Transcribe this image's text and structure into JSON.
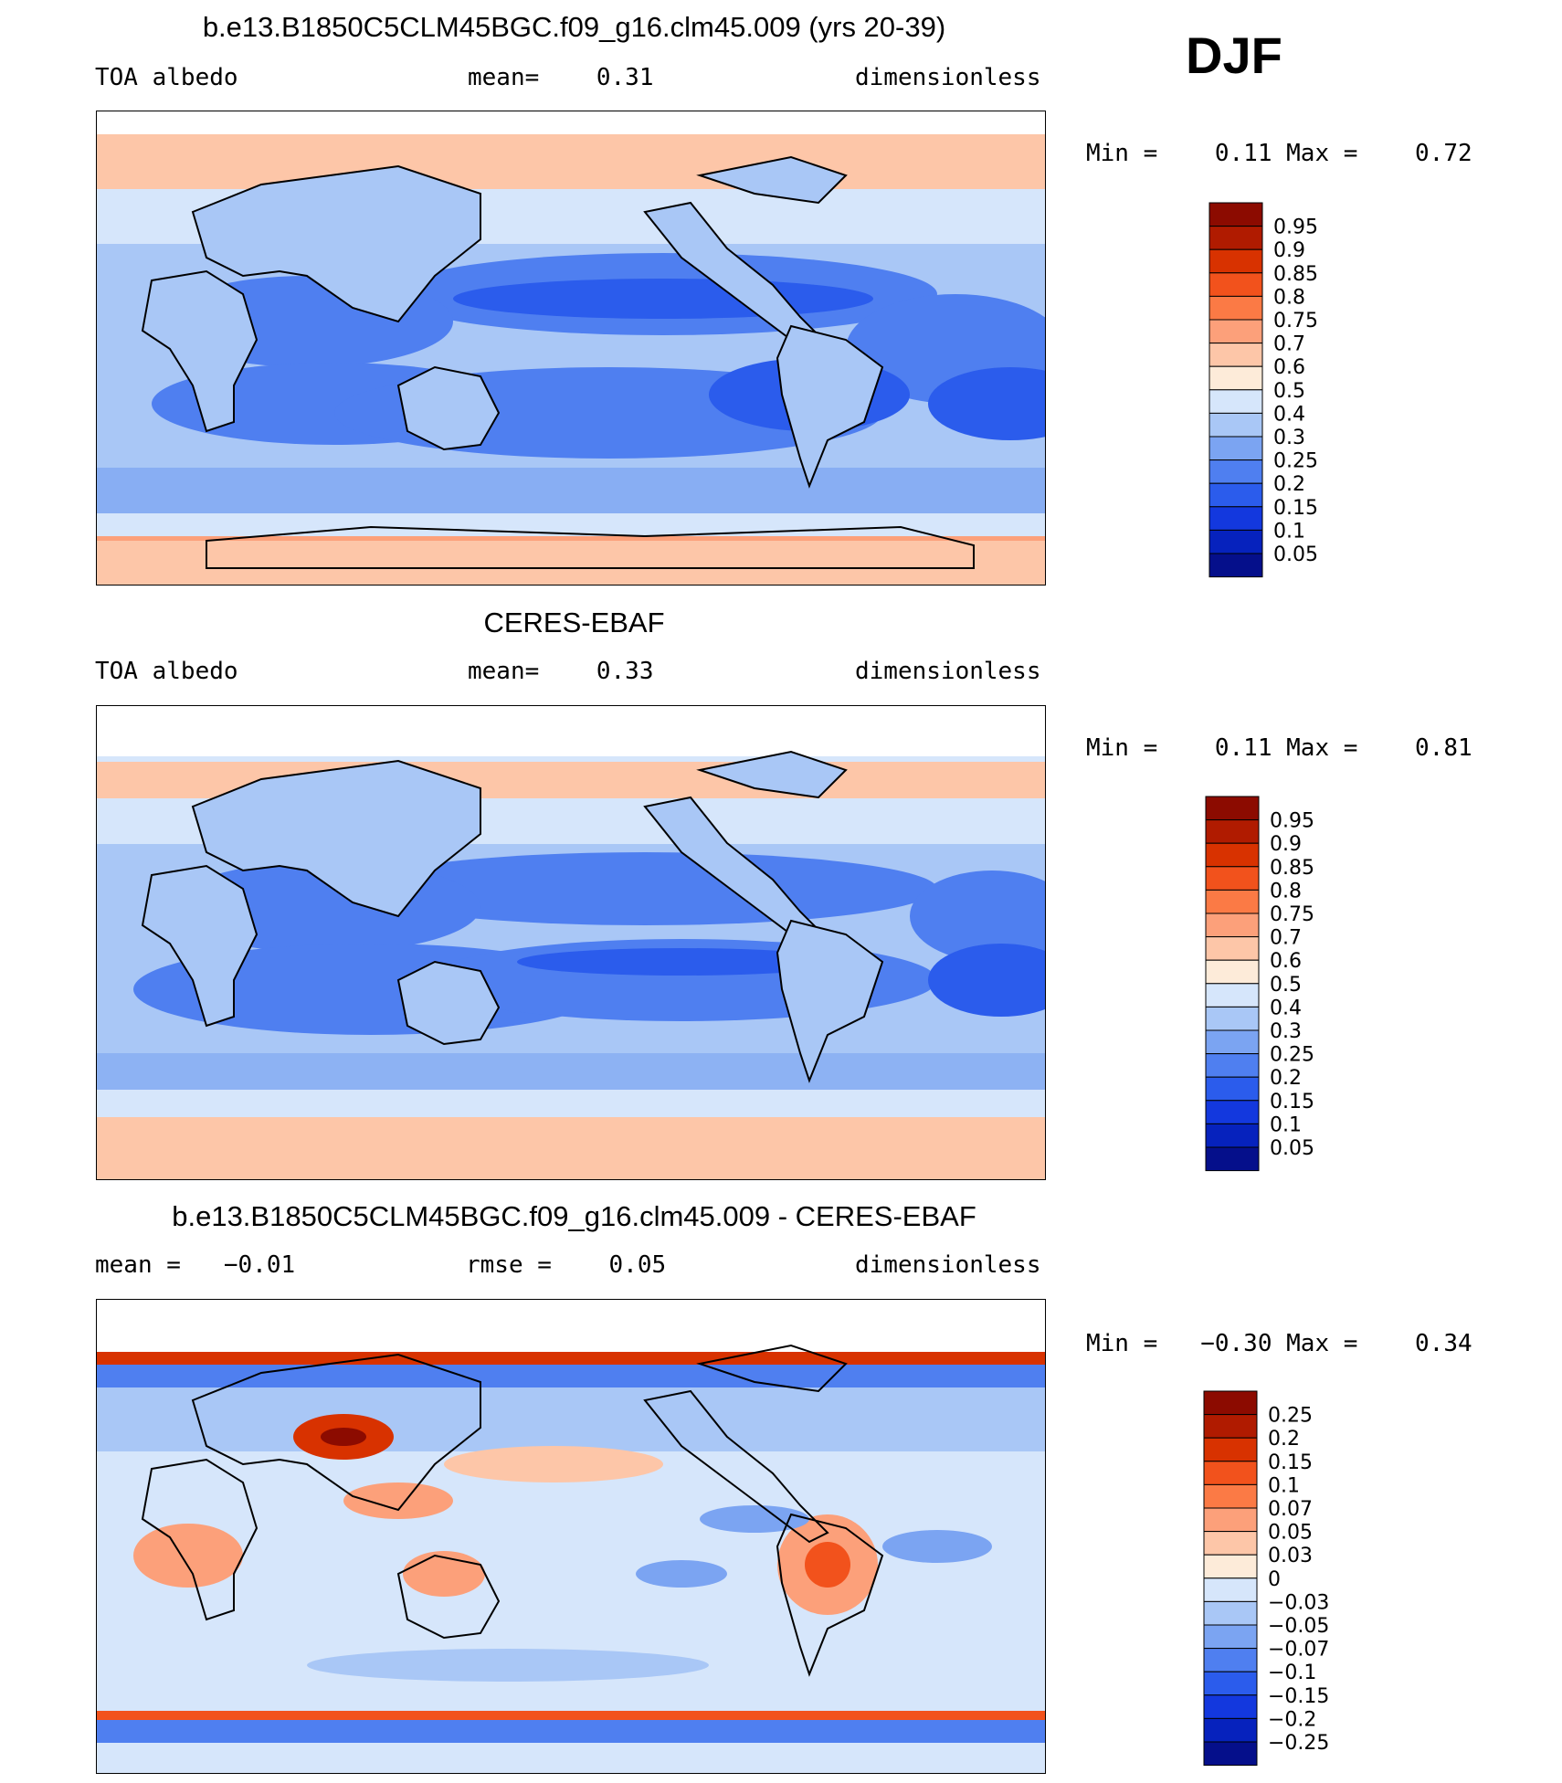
{
  "season": "DJF",
  "panels": [
    {
      "title": "b.e13.B1850C5CLM45BGC.f09_g16.clm45.009 (yrs 20-39)",
      "left": "TOA albedo",
      "middle": "mean=    0.31",
      "right": "dimensionless",
      "minmax": "Min =    0.11 Max =    0.72",
      "colorbar": {
        "colors": [
          "#8c0b00",
          "#b01b00",
          "#d83200",
          "#f2521c",
          "#fb7a45",
          "#fca07a",
          "#fdc6a8",
          "#fdebd9",
          "#d6e6fb",
          "#a9c7f6",
          "#7ba4f2",
          "#4f7ff0",
          "#2b5cec",
          "#1338de",
          "#0622bd",
          "#050f8b"
        ],
        "labels": [
          "0.95",
          "0.9",
          "0.85",
          "0.8",
          "0.75",
          "0.7",
          "0.6",
          "0.5",
          "0.4",
          "0.3",
          "0.25",
          "0.2",
          "0.15",
          "0.1",
          "0.05"
        ]
      }
    },
    {
      "title": "CERES-EBAF",
      "left": "TOA albedo",
      "middle": "mean=    0.33",
      "right": "dimensionless",
      "minmax": "Min =    0.11 Max =    0.81",
      "colorbar": {
        "colors": [
          "#8c0b00",
          "#b01b00",
          "#d83200",
          "#f2521c",
          "#fb7a45",
          "#fca07a",
          "#fdc6a8",
          "#fdebd9",
          "#d6e6fb",
          "#a9c7f6",
          "#7ba4f2",
          "#4f7ff0",
          "#2b5cec",
          "#1338de",
          "#0622bd",
          "#050f8b"
        ],
        "labels": [
          "0.95",
          "0.9",
          "0.85",
          "0.8",
          "0.75",
          "0.7",
          "0.6",
          "0.5",
          "0.4",
          "0.3",
          "0.25",
          "0.2",
          "0.15",
          "0.1",
          "0.05"
        ]
      }
    },
    {
      "title": "b.e13.B1850C5CLM45BGC.f09_g16.clm45.009 - CERES-EBAF",
      "left": "mean =   −0.01",
      "middle": "rmse =    0.05",
      "right": "dimensionless",
      "minmax": "Min =   −0.30 Max =    0.34",
      "colorbar": {
        "colors": [
          "#8c0b00",
          "#b01b00",
          "#d83200",
          "#f2521c",
          "#fb7a45",
          "#fca07a",
          "#fdc6a8",
          "#fdebd9",
          "#d6e6fb",
          "#a9c7f6",
          "#7ba4f2",
          "#4f7ff0",
          "#2b5cec",
          "#1338de",
          "#0622bd",
          "#050f8b"
        ],
        "labels": [
          "0.25",
          "0.2",
          "0.15",
          "0.1",
          "0.07",
          "0.05",
          "0.03",
          "0",
          "−0.03",
          "−0.05",
          "−0.07",
          "−0.1",
          "−0.15",
          "−0.2",
          "−0.25"
        ]
      }
    }
  ]
}
